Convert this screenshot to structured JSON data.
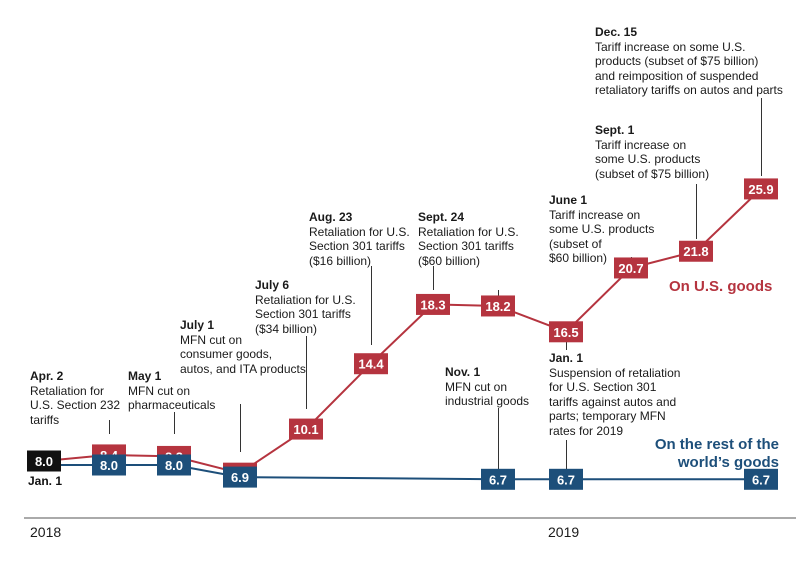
{
  "colors": {
    "us": "#b5343f",
    "rest": "#1d4f7a",
    "start": "#111111",
    "axis": "#555555"
  },
  "chart_data": {
    "type": "line",
    "x_labels": [
      "2018",
      "2019"
    ],
    "start_marker": {
      "label": "Jan. 1",
      "value": 8.0,
      "display": "8.0"
    },
    "series": [
      {
        "name": "On U.S. goods",
        "points": [
          {
            "date": "2018-01-01",
            "value": 8.0,
            "display": "8.0"
          },
          {
            "date": "2018-04-02",
            "value": 8.4,
            "display": "8.4"
          },
          {
            "date": "2018-05-01",
            "value": 8.3,
            "display": "8.3"
          },
          {
            "date": "2018-07-01",
            "value": 7.2,
            "display": "7.2"
          },
          {
            "date": "2018-07-06",
            "value": 10.1,
            "display": "10.1"
          },
          {
            "date": "2018-08-23",
            "value": 14.4,
            "display": "14.4"
          },
          {
            "date": "2018-09-24",
            "value": 18.3,
            "display": "18.3"
          },
          {
            "date": "2018-11-01",
            "value": 18.2,
            "display": "18.2"
          },
          {
            "date": "2019-01-01",
            "value": 16.5,
            "display": "16.5"
          },
          {
            "date": "2019-06-01",
            "value": 20.7,
            "display": "20.7"
          },
          {
            "date": "2019-09-01",
            "value": 21.8,
            "display": "21.8"
          },
          {
            "date": "2019-12-15",
            "value": 25.9,
            "display": "25.9"
          }
        ]
      },
      {
        "name": "On the rest of the world's goods",
        "points": [
          {
            "date": "2018-01-01",
            "value": 8.0,
            "display": "8.0"
          },
          {
            "date": "2018-04-02",
            "value": 8.0,
            "display": "8.0"
          },
          {
            "date": "2018-05-01",
            "value": 8.0,
            "display": "8.0"
          },
          {
            "date": "2018-07-01",
            "value": 6.9,
            "display": "6.9"
          },
          {
            "date": "2018-11-01",
            "value": 6.7,
            "display": "6.7"
          },
          {
            "date": "2019-01-01",
            "value": 6.7,
            "display": "6.7"
          },
          {
            "date": "2019-12-15",
            "value": 6.7,
            "display": "6.7"
          }
        ]
      }
    ]
  },
  "series_labels": {
    "us_line1": "On U.S. goods",
    "rest_line1": "On the rest of the",
    "rest_line2": "world’s goods"
  },
  "annotations": [
    {
      "id": "apr2",
      "date": "Apr. 2",
      "text": "Retaliation for\nU.S. Section 232\ntariffs"
    },
    {
      "id": "may1",
      "date": "May 1",
      "text": "MFN cut on\npharmaceuticals"
    },
    {
      "id": "jul1",
      "date": "July 1",
      "text": "MFN cut on\nconsumer goods,\nautos, and ITA products"
    },
    {
      "id": "jul6",
      "date": "July 6",
      "text": "Retaliation for U.S.\nSection 301 tariffs\n($34 billion)"
    },
    {
      "id": "aug23",
      "date": "Aug. 23",
      "text": "Retaliation for U.S.\nSection 301 tariffs\n($16 billion)"
    },
    {
      "id": "sep24",
      "date": "Sept. 24",
      "text": "Retaliation for U.S.\nSection 301 tariffs\n($60 billion)"
    },
    {
      "id": "nov1",
      "date": "Nov. 1",
      "text": "MFN cut on\nindustrial goods"
    },
    {
      "id": "jan1",
      "date": "Jan. 1",
      "text": "Suspension of retaliation\nfor U.S. Section 301\ntariffs against autos and\nparts; temporary MFN\nrates for 2019"
    },
    {
      "id": "jun1",
      "date": "June 1",
      "text": "Tariff increase on\nsome U.S. products\n(subset of\n$60 billion)"
    },
    {
      "id": "sep1",
      "date": "Sept. 1",
      "text": "Tariff increase on\nsome U.S. products\n(subset of $75 billion)"
    },
    {
      "id": "dec15",
      "date": "Dec. 15",
      "text": "Tariff increase on some U.S.\nproducts (subset of $75 billion)\nand reimposition of suspended\nretaliatory tariffs on autos and parts"
    }
  ]
}
